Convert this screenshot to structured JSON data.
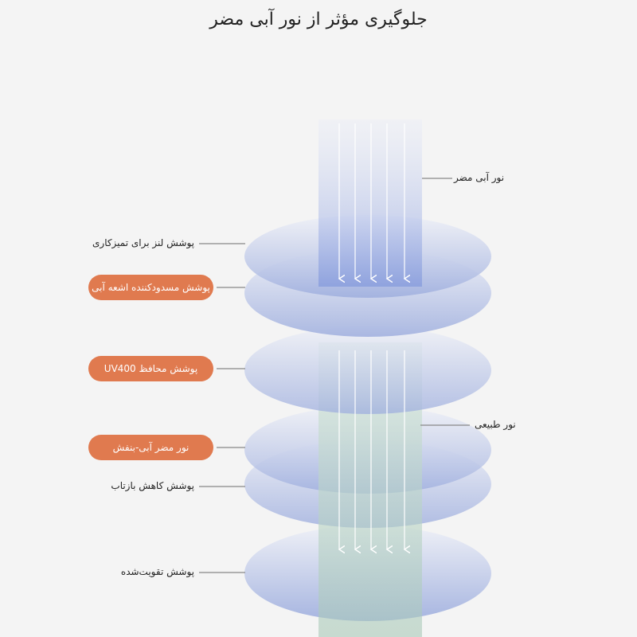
{
  "title": "جلوگیری مؤثر از نور آبی مضر",
  "right_labels": {
    "harmful_blue_light": "نور آبی مضر",
    "natural_light": "نور طبیعی"
  },
  "left_labels": [
    {
      "text": "پوشش لنز برای تمیزکاری",
      "highlight": false
    },
    {
      "text": "پوشش مسدودکننده اشعه آبی",
      "highlight": true
    },
    {
      "text": "پوشش محافظ UV400",
      "highlight": true
    },
    {
      "text": "نور مضر آبی-بنفش",
      "highlight": true
    },
    {
      "text": "پوشش کاهش بازتاب",
      "highlight": false
    },
    {
      "text": "پوشش تقویت‌شده",
      "highlight": false
    }
  ],
  "colors": {
    "accent": "#e07a4f",
    "blue_beam": "#8fa3e0",
    "green_beam": "#b9d6c4"
  }
}
